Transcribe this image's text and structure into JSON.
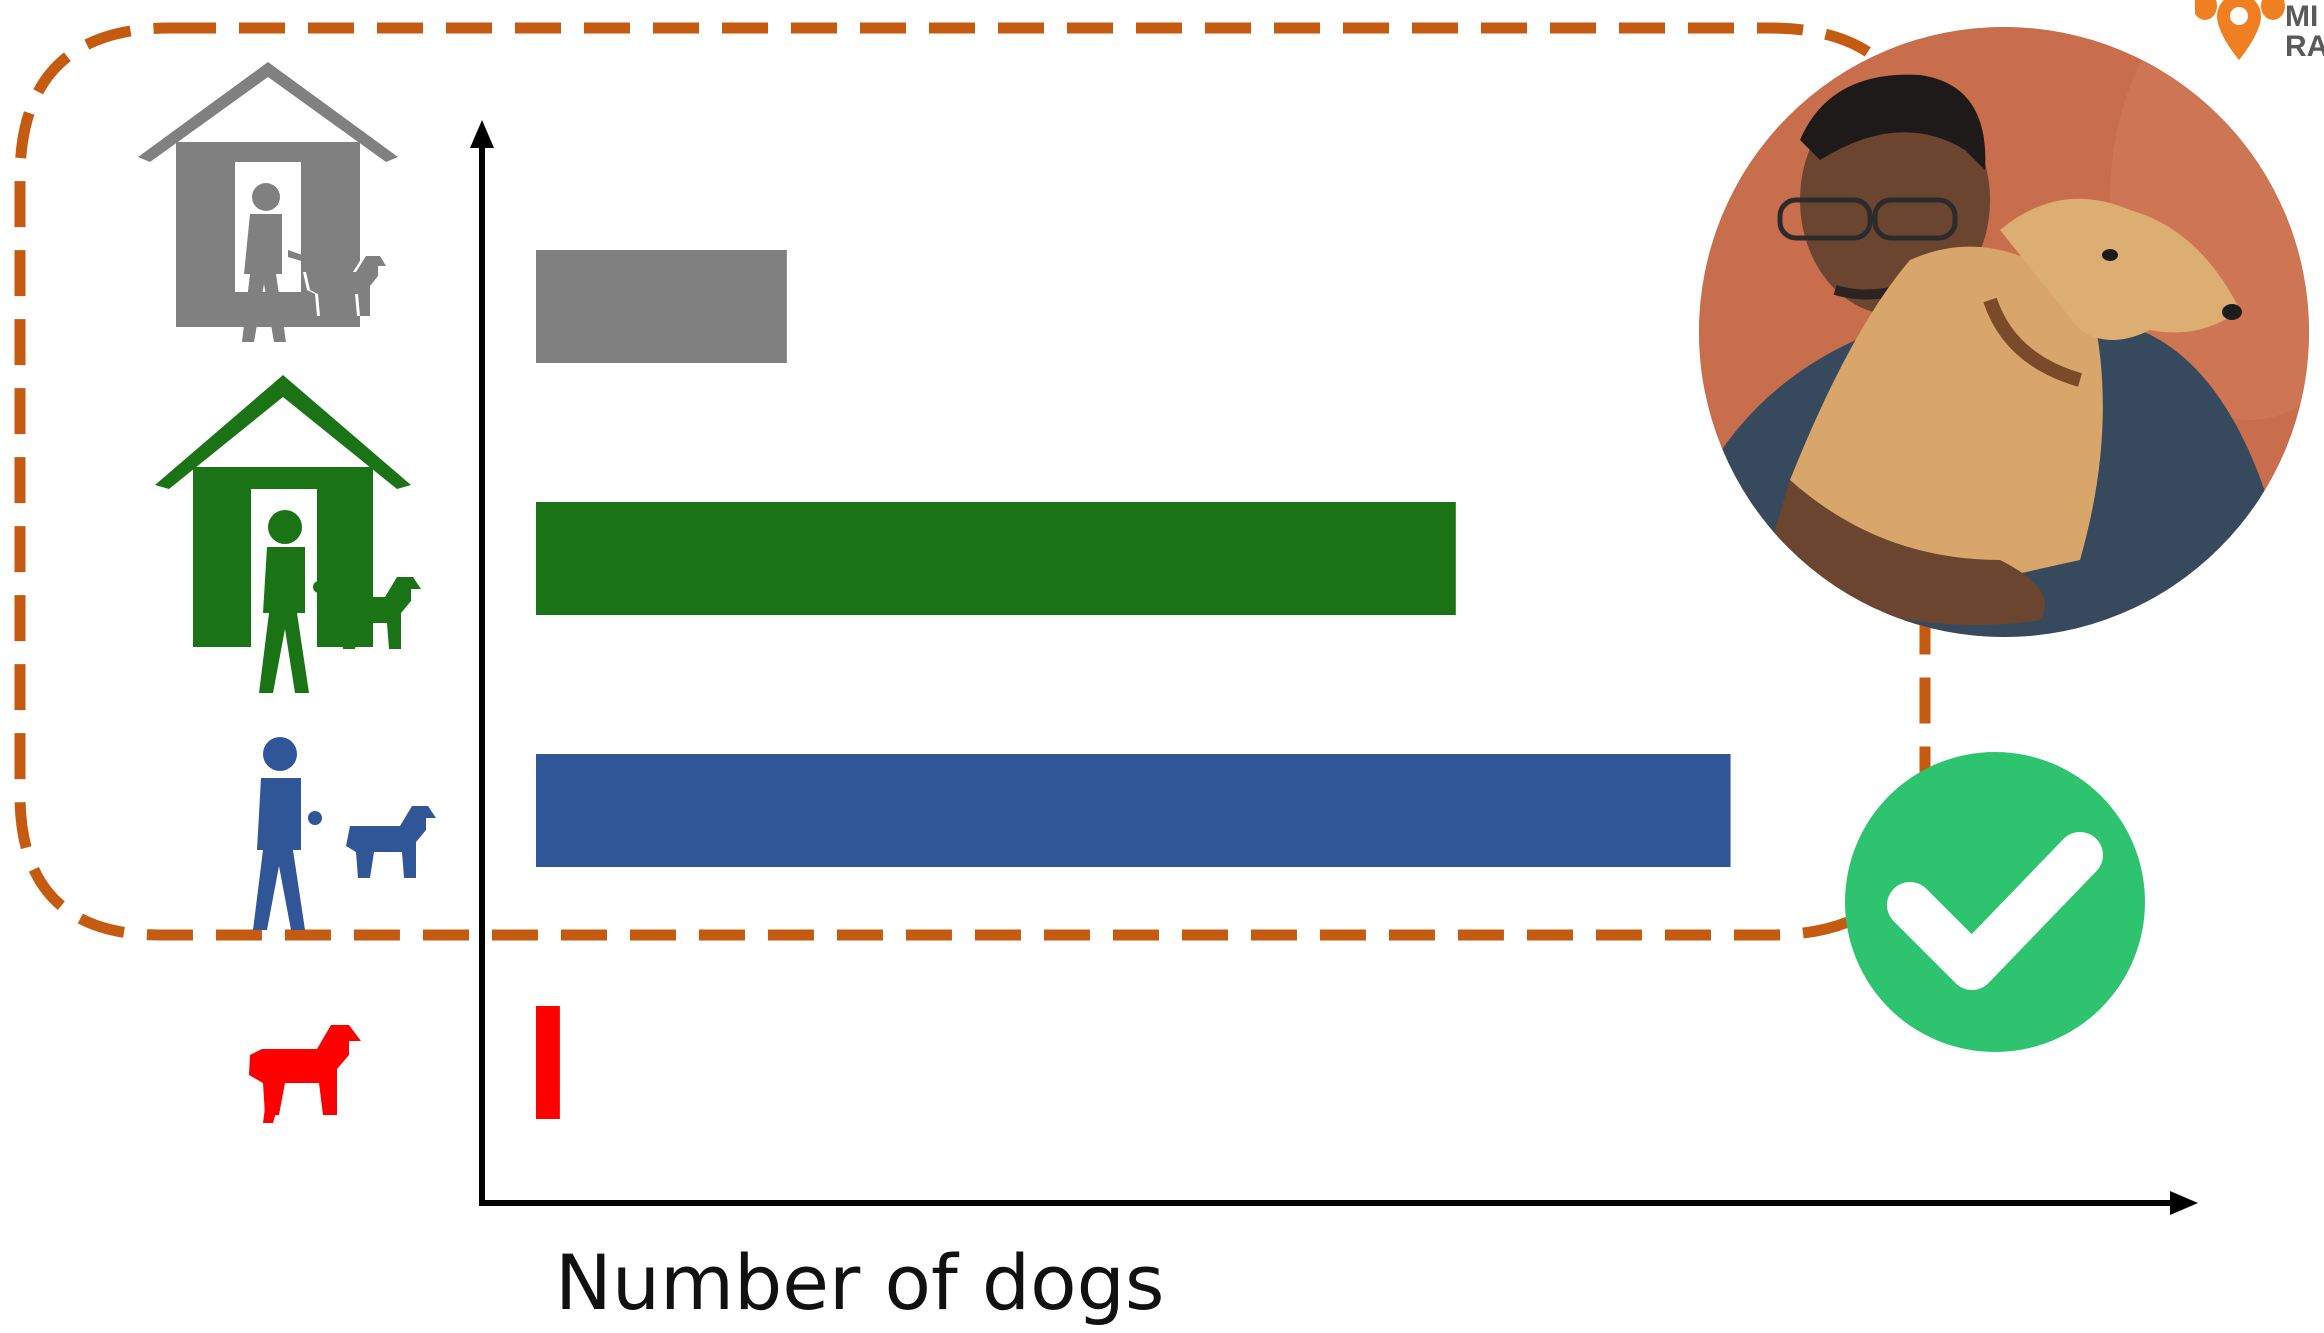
{
  "chart_data": {
    "type": "bar",
    "orientation": "horizontal",
    "categories": [
      "Owned dog, walked on leash",
      "Owned dog, walked on leash",
      "Dog with walker",
      "Dog alone"
    ],
    "category_icons": [
      "house-walker-dog-icon",
      "house-walker-dog-icon",
      "walker-dog-icon",
      "dog-icon"
    ],
    "values": [
      21,
      77,
      100,
      2
    ],
    "colors": [
      "#808080",
      "#1a7315",
      "#305697",
      "#ff0000"
    ],
    "xlabel": "Number of dogs",
    "ylabel": "",
    "xlim": [
      0,
      110
    ],
    "grid": false,
    "highlight_group": [
      0,
      1,
      2
    ]
  },
  "colors": {
    "dash_border": "#c55a11",
    "check_badge": "#2ec46f",
    "axis": "#000000"
  },
  "logo": {
    "text_line1": "MI",
    "text_line2": "RA"
  }
}
